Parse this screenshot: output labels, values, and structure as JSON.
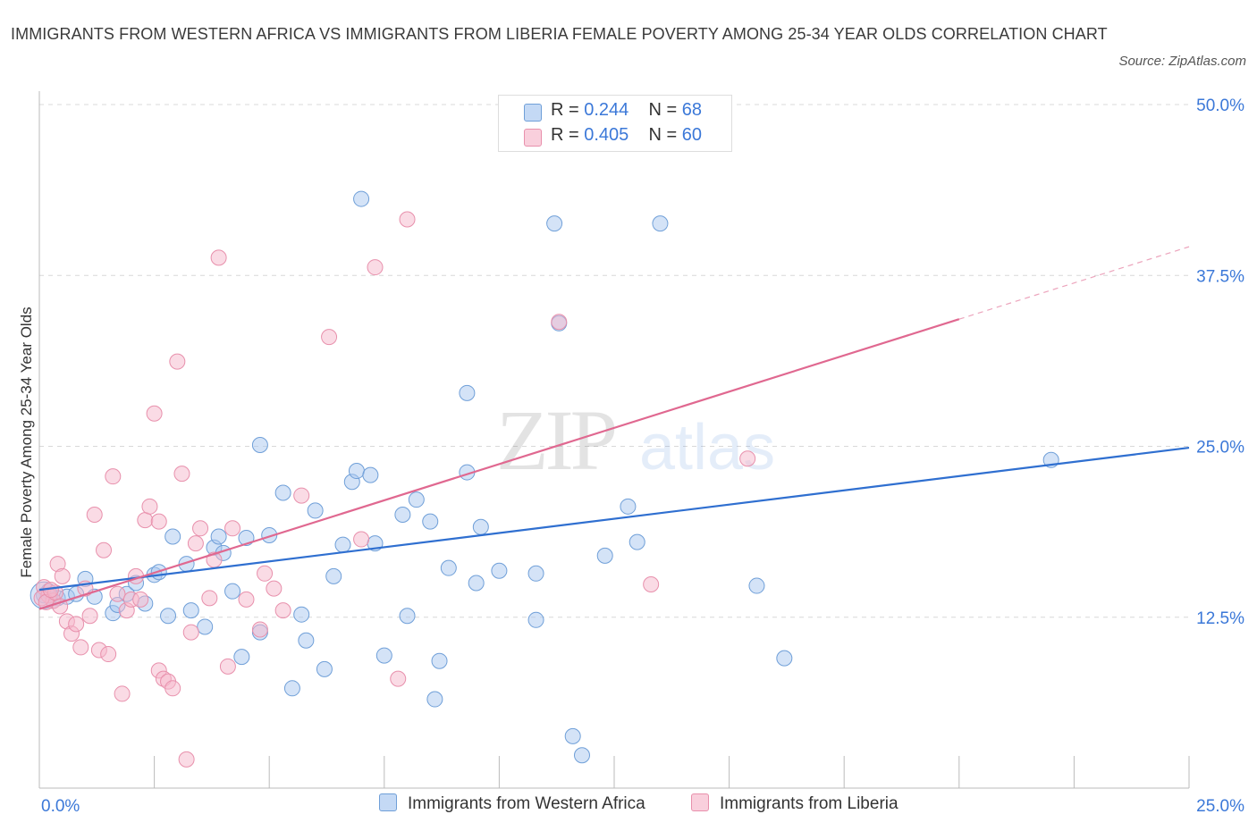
{
  "title": "IMMIGRANTS FROM WESTERN AFRICA VS IMMIGRANTS FROM LIBERIA FEMALE POVERTY AMONG 25-34 YEAR OLDS CORRELATION CHART",
  "source": "Source: ZipAtlas.com",
  "watermark": {
    "zip": "ZIP",
    "atlas": "atlas"
  },
  "colors": {
    "blue_fill": "#aac8f0",
    "blue_stroke": "#6f9fd8",
    "blue_line": "#2f6fd0",
    "pink_fill": "#f5b8cb",
    "pink_stroke": "#e890ac",
    "pink_line": "#e06890",
    "tick_label": "#3b78d8",
    "grid": "#d8d8d8"
  },
  "legend": {
    "r_label": "R =",
    "n_label": "N =",
    "series": [
      {
        "r": "0.244",
        "n": "68"
      },
      {
        "r": "0.405",
        "n": "60"
      }
    ]
  },
  "chart_data": {
    "type": "scatter",
    "title": "IMMIGRANTS FROM WESTERN AFRICA VS IMMIGRANTS FROM LIBERIA FEMALE POVERTY AMONG 25-34 YEAR OLDS CORRELATION CHART",
    "xlabel": "",
    "ylabel": "Female Poverty Among 25-34 Year Olds",
    "xlim": [
      0,
      25
    ],
    "ylim": [
      0,
      50
    ],
    "x_tick_labels": [
      "0.0%",
      "25.0%"
    ],
    "y_ticks": [
      12.5,
      25,
      37.5,
      50
    ],
    "y_tick_labels": [
      "12.5%",
      "25.0%",
      "37.5%",
      "50.0%"
    ],
    "grid": true,
    "legend_position": "bottom",
    "series": [
      {
        "name": "Immigrants from Western Africa",
        "color": "#aac8f0",
        "trend": {
          "x": [
            0,
            25
          ],
          "y": [
            14.5,
            24.9
          ],
          "dashed_to": null
        },
        "points": [
          [
            0.2,
            14.4
          ],
          [
            0.4,
            13.9
          ],
          [
            0.6,
            14.0
          ],
          [
            0.8,
            14.2
          ],
          [
            1.0,
            15.3
          ],
          [
            1.2,
            14.0
          ],
          [
            1.6,
            12.8
          ],
          [
            1.7,
            13.4
          ],
          [
            1.9,
            14.2
          ],
          [
            2.1,
            15.0
          ],
          [
            2.3,
            13.5
          ],
          [
            2.5,
            15.6
          ],
          [
            2.6,
            15.8
          ],
          [
            2.8,
            12.6
          ],
          [
            2.9,
            18.4
          ],
          [
            3.2,
            16.4
          ],
          [
            3.3,
            13.0
          ],
          [
            3.6,
            11.8
          ],
          [
            3.8,
            17.6
          ],
          [
            3.9,
            18.4
          ],
          [
            4.0,
            17.2
          ],
          [
            4.2,
            14.4
          ],
          [
            4.4,
            9.6
          ],
          [
            4.5,
            18.3
          ],
          [
            4.8,
            11.4
          ],
          [
            4.8,
            25.1
          ],
          [
            5.0,
            18.5
          ],
          [
            5.3,
            21.6
          ],
          [
            5.5,
            7.3
          ],
          [
            5.7,
            12.7
          ],
          [
            5.8,
            10.8
          ],
          [
            6.0,
            20.3
          ],
          [
            6.2,
            8.7
          ],
          [
            6.4,
            15.5
          ],
          [
            6.6,
            17.8
          ],
          [
            6.8,
            22.4
          ],
          [
            6.9,
            23.2
          ],
          [
            7.0,
            43.1
          ],
          [
            7.2,
            22.9
          ],
          [
            7.3,
            17.9
          ],
          [
            7.5,
            9.7
          ],
          [
            7.9,
            20.0
          ],
          [
            8.0,
            12.6
          ],
          [
            8.2,
            21.1
          ],
          [
            8.5,
            19.5
          ],
          [
            8.6,
            6.5
          ],
          [
            8.7,
            9.3
          ],
          [
            8.9,
            16.1
          ],
          [
            9.3,
            23.1
          ],
          [
            9.3,
            28.9
          ],
          [
            9.5,
            15.0
          ],
          [
            9.6,
            19.1
          ],
          [
            10.0,
            15.9
          ],
          [
            10.8,
            12.3
          ],
          [
            10.8,
            15.7
          ],
          [
            11.2,
            41.3
          ],
          [
            11.3,
            34.0
          ],
          [
            11.6,
            3.8
          ],
          [
            11.8,
            2.4
          ],
          [
            12.3,
            17.0
          ],
          [
            12.8,
            20.6
          ],
          [
            13.0,
            18.0
          ],
          [
            13.5,
            41.3
          ],
          [
            15.6,
            14.8
          ],
          [
            16.2,
            9.5
          ],
          [
            22.0,
            24.0
          ],
          [
            0.1,
            14.1
          ],
          [
            0.3,
            13.7
          ]
        ]
      },
      {
        "name": "Immigrants from Liberia",
        "color": "#f5b8cb",
        "trend": {
          "x": [
            0,
            20
          ],
          "y": [
            13.1,
            34.3
          ],
          "dashed_to": [
            25,
            39.6
          ]
        },
        "points": [
          [
            0.1,
            14.7
          ],
          [
            0.2,
            14.1
          ],
          [
            0.3,
            13.7
          ],
          [
            0.4,
            16.4
          ],
          [
            0.5,
            15.5
          ],
          [
            0.6,
            12.2
          ],
          [
            0.7,
            11.3
          ],
          [
            0.8,
            12.0
          ],
          [
            0.9,
            10.3
          ],
          [
            1.0,
            14.6
          ],
          [
            1.1,
            12.6
          ],
          [
            1.2,
            20.0
          ],
          [
            1.3,
            10.1
          ],
          [
            1.4,
            17.4
          ],
          [
            1.5,
            9.8
          ],
          [
            1.6,
            22.8
          ],
          [
            1.7,
            14.2
          ],
          [
            1.8,
            6.9
          ],
          [
            1.9,
            13.0
          ],
          [
            2.0,
            13.8
          ],
          [
            2.1,
            15.5
          ],
          [
            2.2,
            13.8
          ],
          [
            2.3,
            19.6
          ],
          [
            2.4,
            20.6
          ],
          [
            2.5,
            27.4
          ],
          [
            2.6,
            19.5
          ],
          [
            2.6,
            8.6
          ],
          [
            2.7,
            8.0
          ],
          [
            2.8,
            7.8
          ],
          [
            2.9,
            7.3
          ],
          [
            3.0,
            31.2
          ],
          [
            3.1,
            23.0
          ],
          [
            3.2,
            2.1
          ],
          [
            3.3,
            11.4
          ],
          [
            3.4,
            17.9
          ],
          [
            3.5,
            19.0
          ],
          [
            3.7,
            13.9
          ],
          [
            3.8,
            16.7
          ],
          [
            3.9,
            38.8
          ],
          [
            4.1,
            8.9
          ],
          [
            4.2,
            19.0
          ],
          [
            4.5,
            13.8
          ],
          [
            4.8,
            11.6
          ],
          [
            4.9,
            15.7
          ],
          [
            5.1,
            14.6
          ],
          [
            5.3,
            13.0
          ],
          [
            5.7,
            21.4
          ],
          [
            6.3,
            33.0
          ],
          [
            7.0,
            18.2
          ],
          [
            7.3,
            38.1
          ],
          [
            7.8,
            8.0
          ],
          [
            8.0,
            41.6
          ],
          [
            11.3,
            34.1
          ],
          [
            13.3,
            14.9
          ],
          [
            15.4,
            24.1
          ],
          [
            0.05,
            13.9
          ],
          [
            0.15,
            13.6
          ],
          [
            0.35,
            14.3
          ],
          [
            0.45,
            13.3
          ],
          [
            0.25,
            14.5
          ]
        ]
      }
    ]
  }
}
